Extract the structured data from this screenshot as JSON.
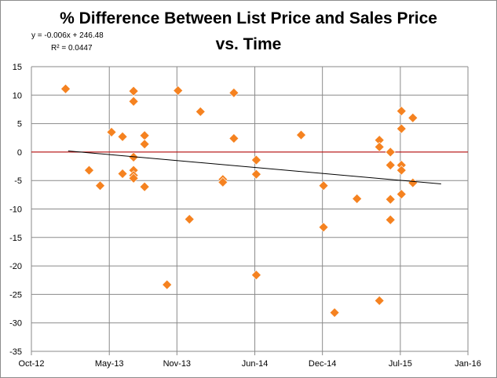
{
  "chart_data": {
    "type": "scatter",
    "title_line1": "% Difference Between List Price and Sales Price",
    "title_line2": "vs. Time",
    "equation": "y = -0.006x + 246.48",
    "r_squared": "R² = 0.0447",
    "xlabel": "",
    "ylabel": "",
    "x_tick_labels": [
      "Oct-12",
      "May-13",
      "Nov-13",
      "Jun-14",
      "Dec-14",
      "Jul-15",
      "Jan-16"
    ],
    "x_tick_days": [
      0,
      212,
      396,
      608,
      792,
      1004,
      1188
    ],
    "xlim_days": [
      0,
      1188
    ],
    "x_origin_date": "2012-10-01",
    "ylim": [
      -35,
      15
    ],
    "y_ticks": [
      15,
      10,
      5,
      0,
      -5,
      -10,
      -15,
      -20,
      -25,
      -30,
      -35
    ],
    "grid": true,
    "marker_color": "#f58220",
    "zero_line_color": "#c00000",
    "trend_color": "#000000",
    "trendline": {
      "x_start_days": 100,
      "y_start": 0.2,
      "x_end_days": 1115,
      "y_end": -5.6
    },
    "series": [
      {
        "name": "% Difference",
        "points": [
          {
            "x": 93,
            "y": 11.1
          },
          {
            "x": 157,
            "y": -3.2
          },
          {
            "x": 187,
            "y": -5.9
          },
          {
            "x": 218,
            "y": 3.5
          },
          {
            "x": 248,
            "y": 2.7
          },
          {
            "x": 248,
            "y": -3.8
          },
          {
            "x": 278,
            "y": 10.7
          },
          {
            "x": 278,
            "y": 8.9
          },
          {
            "x": 278,
            "y": -0.9
          },
          {
            "x": 278,
            "y": -3.2
          },
          {
            "x": 278,
            "y": -4.1
          },
          {
            "x": 278,
            "y": -4.6
          },
          {
            "x": 308,
            "y": 2.9
          },
          {
            "x": 308,
            "y": 1.4
          },
          {
            "x": 308,
            "y": -6.1
          },
          {
            "x": 369,
            "y": -23.3
          },
          {
            "x": 399,
            "y": 10.8
          },
          {
            "x": 430,
            "y": -11.8
          },
          {
            "x": 460,
            "y": 7.1
          },
          {
            "x": 521,
            "y": -4.8
          },
          {
            "x": 521,
            "y": -5.3
          },
          {
            "x": 551,
            "y": 10.4
          },
          {
            "x": 551,
            "y": 2.4
          },
          {
            "x": 612,
            "y": -1.4
          },
          {
            "x": 612,
            "y": -3.9
          },
          {
            "x": 612,
            "y": -21.6
          },
          {
            "x": 734,
            "y": 3.0
          },
          {
            "x": 795,
            "y": -5.9
          },
          {
            "x": 795,
            "y": -13.2
          },
          {
            "x": 825,
            "y": -28.2
          },
          {
            "x": 886,
            "y": -8.2
          },
          {
            "x": 947,
            "y": 2.1
          },
          {
            "x": 947,
            "y": 0.9
          },
          {
            "x": 947,
            "y": -26.1
          },
          {
            "x": 977,
            "y": 0.0
          },
          {
            "x": 977,
            "y": -2.3
          },
          {
            "x": 977,
            "y": -8.3
          },
          {
            "x": 977,
            "y": -11.9
          },
          {
            "x": 1007,
            "y": 7.2
          },
          {
            "x": 1007,
            "y": 4.1
          },
          {
            "x": 1007,
            "y": -2.3
          },
          {
            "x": 1007,
            "y": -3.2
          },
          {
            "x": 1007,
            "y": -7.4
          },
          {
            "x": 1038,
            "y": 6.0
          },
          {
            "x": 1038,
            "y": -5.4
          }
        ]
      }
    ]
  }
}
